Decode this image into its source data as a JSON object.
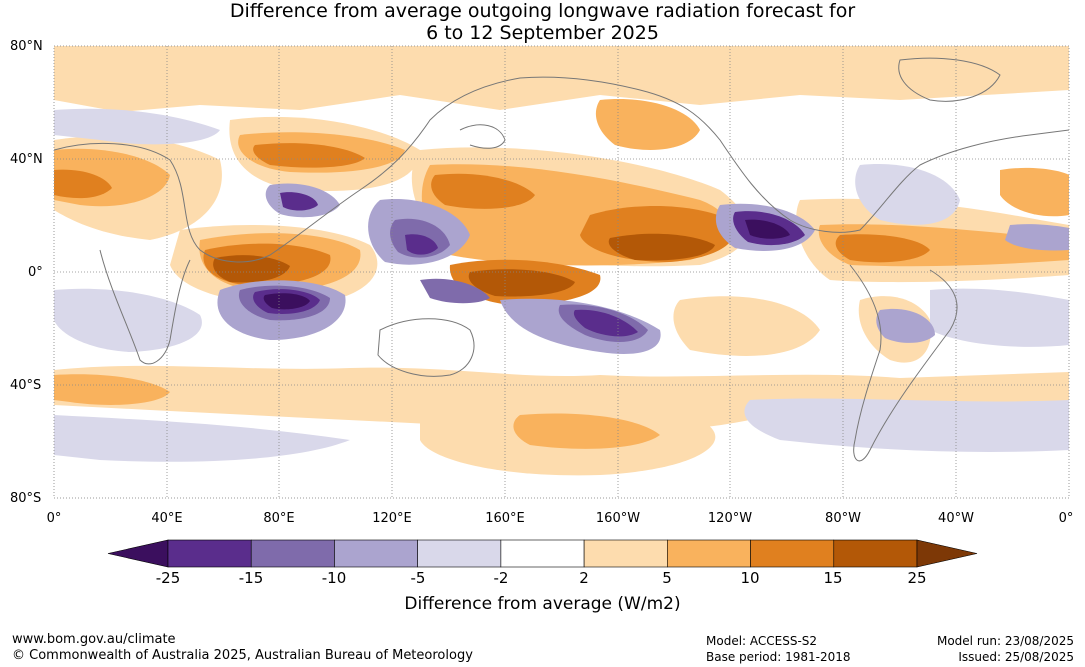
{
  "title": {
    "line1": "Difference from average outgoing longwave radiation forecast for",
    "line2": "6 to 12 September 2025"
  },
  "map": {
    "lat_labels": [
      "80°N",
      "40°N",
      "0°",
      "40°S",
      "80°S"
    ],
    "lon_labels": [
      "0°",
      "40°E",
      "80°E",
      "120°E",
      "160°E",
      "160°W",
      "120°W",
      "80°W",
      "40°W",
      "0°"
    ],
    "grid": true
  },
  "colorbar": {
    "ticks": [
      "-25",
      "-15",
      "-10",
      "-5",
      "-2",
      "2",
      "5",
      "10",
      "15",
      "25"
    ],
    "label": "Difference from average (W/m2)",
    "colors": [
      "#3b0f5e",
      "#5a2d8c",
      "#7f6bab",
      "#aba4cf",
      "#d9d8ea",
      "#ffffff",
      "#fddcae",
      "#f9b25d",
      "#e0801f",
      "#b35807",
      "#7d3806"
    ]
  },
  "footer": {
    "url": "www.bom.gov.au/climate",
    "copyright": "© Commonwealth of Australia 2025, Australian Bureau of Meteorology",
    "model": "Model: ACCESS-S2",
    "base_period": "Base period: 1981-2018",
    "model_run": "Model run: 23/08/2025",
    "issued": "Issued: 25/08/2025"
  }
}
